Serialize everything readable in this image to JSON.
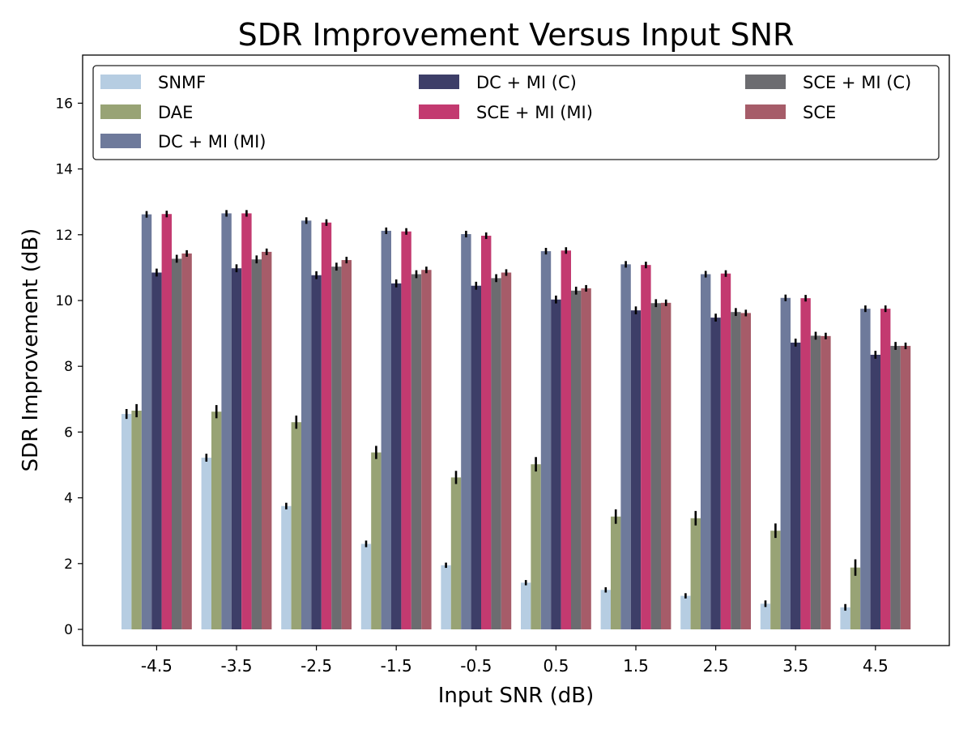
{
  "chart_data": {
    "type": "bar",
    "title": "SDR Improvement Versus Input SNR",
    "xlabel": "Input SNR (dB)",
    "ylabel": "SDR Improvement (dB)",
    "ylim": [
      -0.5,
      17.3
    ],
    "yticks": [
      0,
      2,
      4,
      6,
      8,
      10,
      12,
      14,
      16
    ],
    "grid": false,
    "legend_position": "top",
    "categories": [
      "-4.5",
      "-3.5",
      "-2.5",
      "-1.5",
      "-0.5",
      "0.5",
      "1.5",
      "2.5",
      "3.5",
      "4.5"
    ],
    "series": [
      {
        "name": "SNMF",
        "color": "#b6cde2",
        "values": [
          6.55,
          5.22,
          3.75,
          2.6,
          1.95,
          1.42,
          1.2,
          1.02,
          0.78,
          0.67
        ],
        "errors": [
          0.15,
          0.12,
          0.1,
          0.1,
          0.08,
          0.08,
          0.08,
          0.08,
          0.1,
          0.1
        ]
      },
      {
        "name": "DAE",
        "color": "#98a375",
        "values": [
          6.65,
          6.62,
          6.3,
          5.38,
          4.62,
          5.02,
          3.43,
          3.38,
          3.0,
          1.88
        ],
        "errors": [
          0.2,
          0.2,
          0.2,
          0.2,
          0.2,
          0.22,
          0.22,
          0.22,
          0.22,
          0.25
        ]
      },
      {
        "name": "DC + MI (MI)",
        "color": "#6e7a9b",
        "values": [
          12.62,
          12.65,
          12.43,
          12.12,
          12.02,
          11.5,
          11.1,
          10.8,
          10.08,
          9.75
        ],
        "errors": [
          0.1,
          0.1,
          0.1,
          0.1,
          0.1,
          0.1,
          0.1,
          0.1,
          0.1,
          0.1
        ]
      },
      {
        "name": "DC + MI (C)",
        "color": "#3d3e68",
        "values": [
          10.85,
          10.98,
          10.77,
          10.52,
          10.45,
          10.03,
          9.7,
          9.48,
          8.72,
          8.35
        ],
        "errors": [
          0.12,
          0.12,
          0.12,
          0.12,
          0.12,
          0.12,
          0.12,
          0.12,
          0.12,
          0.12
        ]
      },
      {
        "name": "SCE + MI (MI)",
        "color": "#c33a70",
        "values": [
          12.63,
          12.65,
          12.37,
          12.1,
          11.97,
          11.52,
          11.08,
          10.82,
          10.07,
          9.75
        ],
        "errors": [
          0.1,
          0.1,
          0.1,
          0.1,
          0.1,
          0.1,
          0.1,
          0.1,
          0.1,
          0.1
        ]
      },
      {
        "name": "SCE + MI (C)",
        "color": "#6c6c70",
        "values": [
          11.27,
          11.25,
          11.03,
          10.8,
          10.68,
          10.3,
          9.92,
          9.65,
          8.93,
          8.62
        ],
        "errors": [
          0.12,
          0.12,
          0.12,
          0.12,
          0.12,
          0.12,
          0.12,
          0.12,
          0.12,
          0.12
        ]
      },
      {
        "name": "SCE",
        "color": "#a65c69",
        "values": [
          11.43,
          11.48,
          11.23,
          10.93,
          10.85,
          10.37,
          9.93,
          9.62,
          8.92,
          8.62
        ],
        "errors": [
          0.1,
          0.1,
          0.1,
          0.1,
          0.1,
          0.1,
          0.1,
          0.1,
          0.1,
          0.1
        ]
      }
    ],
    "legend_order": [
      "SNMF",
      "DAE",
      "DC + MI (MI)",
      "DC + MI (C)",
      "SCE + MI (MI)",
      "SCE + MI (C)",
      "SCE"
    ]
  }
}
